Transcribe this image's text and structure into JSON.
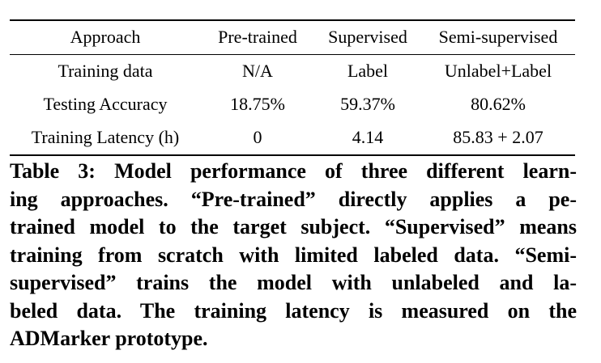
{
  "table": {
    "headers": [
      "Approach",
      "Pre-trained",
      "Supervised",
      "Semi-supervised"
    ],
    "rows": [
      [
        "Training data",
        "N/A",
        "Label",
        "Unlabel+Label"
      ],
      [
        "Testing Accuracy",
        "18.75%",
        "59.37%",
        "80.62%"
      ],
      [
        "Training Latency (h)",
        "0",
        "4.14",
        "85.83 + 2.07"
      ]
    ]
  },
  "caption": {
    "lines": [
      "Table 3: Model performance of three different learn-",
      "ing approaches. “Pre-trained” directly applies a pe-",
      "trained model to the target subject. “Supervised” means",
      "training from scratch with limited labeled data. “Semi-",
      "supervised” trains the model with unlabeled and la-",
      "beled data. The training latency is measured on the",
      "ADMarker prototype."
    ]
  }
}
